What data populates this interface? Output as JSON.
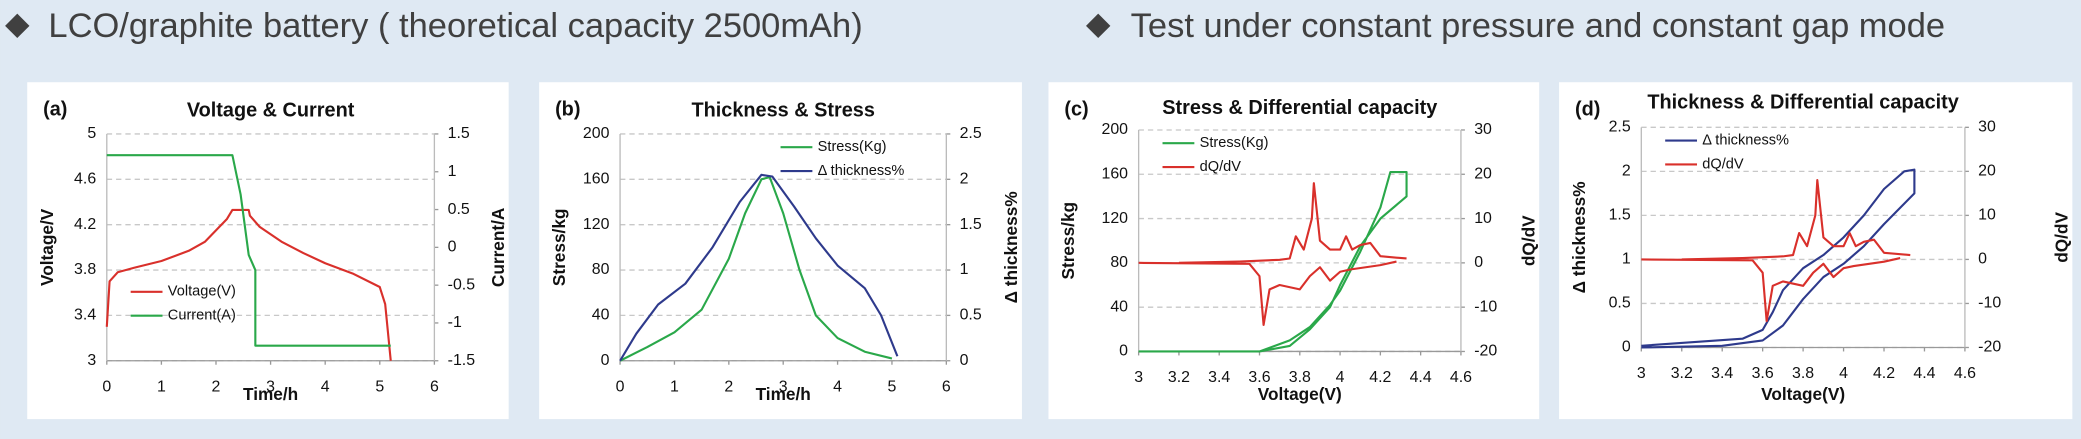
{
  "header": {
    "left": "LCO/graphite battery ( theoretical capacity 2500mAh)",
    "right": "Test under constant pressure and constant gap mode"
  },
  "chart_data": [
    {
      "type": "line",
      "label": "(a)",
      "title": "Voltage & Current",
      "xlabel": "Time/h",
      "ylabel": "Voltage/V",
      "y2label": "Current/A",
      "xlim": [
        0,
        6
      ],
      "xticks": [
        0,
        1,
        2,
        3,
        4,
        5,
        6
      ],
      "ylim": [
        3,
        5
      ],
      "yticks": [
        3,
        3.4,
        3.8,
        4.2,
        4.6,
        5
      ],
      "y2lim": [
        -1.5,
        1.5
      ],
      "y2ticks": [
        -1.5,
        -1,
        -0.5,
        0,
        0.5,
        1,
        1.5
      ],
      "grid": true,
      "legend": "lower left",
      "series": [
        {
          "name": "Voltage(V)",
          "color": "#d9302b",
          "x": [
            0,
            0.05,
            0.2,
            0.5,
            1,
            1.5,
            1.8,
            2.0,
            2.2,
            2.3,
            2.6,
            2.62,
            2.8,
            3.2,
            3.6,
            4,
            4.5,
            5.0,
            5.1,
            5.2
          ],
          "values": [
            3.3,
            3.7,
            3.78,
            3.82,
            3.88,
            3.97,
            4.05,
            4.15,
            4.25,
            4.33,
            4.33,
            4.28,
            4.18,
            4.05,
            3.95,
            3.86,
            3.77,
            3.65,
            3.5,
            3.0
          ]
        },
        {
          "name": "Current(A)",
          "color": "#2aa84a",
          "axis": "y2",
          "x": [
            0,
            2.3,
            2.45,
            2.6,
            2.72,
            2.72,
            5.2
          ],
          "values": [
            1.22,
            1.22,
            0.7,
            -0.1,
            -0.3,
            -1.3,
            -1.3
          ]
        }
      ]
    },
    {
      "type": "line",
      "label": "(b)",
      "title": "Thickness & Stress",
      "xlabel": "Time/h",
      "ylabel": "Stress/kg",
      "y2label": "Δ thickness%",
      "xlim": [
        0,
        6
      ],
      "xticks": [
        0,
        1,
        2,
        3,
        4,
        5,
        6
      ],
      "ylim": [
        0,
        200
      ],
      "yticks": [
        0,
        40,
        80,
        120,
        160,
        200
      ],
      "y2lim": [
        0,
        2.5
      ],
      "y2ticks": [
        0,
        0.5,
        1,
        1.5,
        2,
        2.5
      ],
      "grid": true,
      "legend": "upper right",
      "series": [
        {
          "name": "Stress(Kg)",
          "color": "#2aa84a",
          "x": [
            0,
            0.5,
            1,
            1.5,
            2,
            2.3,
            2.6,
            2.75,
            3,
            3.3,
            3.6,
            4,
            4.5,
            5
          ],
          "values": [
            0,
            12,
            25,
            45,
            90,
            130,
            160,
            162,
            130,
            80,
            40,
            20,
            8,
            2
          ]
        },
        {
          "name": "Δ thickness%",
          "color": "#2e3a8c",
          "axis": "y2",
          "x": [
            0,
            0.3,
            0.7,
            1.2,
            1.7,
            2.2,
            2.6,
            2.8,
            3.2,
            3.6,
            4,
            4.5,
            4.8,
            5.1
          ],
          "values": [
            0,
            0.3,
            0.62,
            0.85,
            1.25,
            1.75,
            2.05,
            2.03,
            1.7,
            1.35,
            1.05,
            0.8,
            0.5,
            0.05
          ]
        }
      ]
    },
    {
      "type": "line",
      "label": "(c)",
      "title": "Stress & Differential capacity",
      "xlabel": "Voltage(V)",
      "ylabel": "Stress/kg",
      "y2label": "dQ/dV",
      "xlim": [
        3,
        4.6
      ],
      "xticks": [
        3,
        3.2,
        3.4,
        3.6,
        3.8,
        4,
        4.2,
        4.4,
        4.6
      ],
      "ylim": [
        0,
        200
      ],
      "yticks": [
        0,
        40,
        80,
        120,
        160,
        200
      ],
      "y2lim": [
        -20,
        30
      ],
      "y2ticks": [
        -20,
        -10,
        0,
        10,
        20,
        30
      ],
      "grid": true,
      "legend": "upper left",
      "series": [
        {
          "name": "Stress(Kg)",
          "color": "#2aa84a",
          "x": [
            3.0,
            3.6,
            3.75,
            3.85,
            3.95,
            4.0,
            4.1,
            4.2,
            4.25,
            4.33,
            4.33,
            4.2,
            4.1,
            4.0,
            3.95,
            3.85,
            3.75,
            3.6
          ],
          "values": [
            0,
            0,
            10,
            22,
            42,
            55,
            90,
            130,
            162,
            162,
            140,
            120,
            95,
            60,
            40,
            20,
            5,
            0
          ]
        },
        {
          "name": "dQ/dV",
          "color": "#d9302b",
          "axis": "y2",
          "x": [
            3.0,
            3.55,
            3.6,
            3.62,
            3.65,
            3.7,
            3.8,
            3.85,
            3.9,
            3.95,
            4.0,
            4.05,
            4.2,
            4.28,
            null,
            3.2,
            3.5,
            3.7,
            3.75,
            3.78,
            3.82,
            3.86,
            3.87,
            3.9,
            3.95,
            4.0,
            4.03,
            4.06,
            4.1,
            4.15,
            4.2,
            4.33
          ],
          "values": [
            0,
            -0.2,
            -3,
            -14,
            -6,
            -5,
            -6,
            -3,
            -1,
            -4,
            -2,
            -1.5,
            -0.5,
            0.3,
            null,
            0,
            0.3,
            0.7,
            1,
            6,
            3,
            10,
            18,
            5,
            3,
            3,
            6,
            3,
            4,
            4.5,
            1.5,
            1
          ]
        }
      ]
    },
    {
      "type": "line",
      "label": "(d)",
      "title": "Thickness & Differential capacity",
      "xlabel": "Voltage(V)",
      "ylabel": "Δ thickness%",
      "y2label": "dQ/dV",
      "xlim": [
        3,
        4.6
      ],
      "xticks": [
        3,
        3.2,
        3.4,
        3.6,
        3.8,
        4,
        4.2,
        4.4,
        4.6
      ],
      "ylim": [
        0,
        2.5
      ],
      "yticks": [
        0,
        0.5,
        1,
        1.5,
        2,
        2.5
      ],
      "y2lim": [
        -20,
        30
      ],
      "y2ticks": [
        -20,
        -10,
        0,
        10,
        20,
        30
      ],
      "grid": true,
      "legend": "upper left",
      "series": [
        {
          "name": "Δ thickness%",
          "color": "#2e3a8c",
          "x": [
            3.0,
            3.5,
            3.6,
            3.65,
            3.7,
            3.8,
            3.9,
            4.0,
            4.1,
            4.2,
            4.3,
            4.35,
            4.35,
            4.2,
            4.1,
            4.0,
            3.9,
            3.8,
            3.7,
            3.6,
            3.4,
            3.0
          ],
          "values": [
            0.02,
            0.1,
            0.2,
            0.4,
            0.65,
            0.9,
            1.05,
            1.25,
            1.5,
            1.8,
            2.0,
            2.02,
            1.75,
            1.4,
            1.15,
            0.95,
            0.8,
            0.55,
            0.25,
            0.08,
            0.02,
            0
          ]
        },
        {
          "name": "dQ/dV",
          "color": "#d9302b",
          "axis": "y2",
          "x": [
            3.0,
            3.55,
            3.6,
            3.62,
            3.65,
            3.7,
            3.8,
            3.85,
            3.9,
            3.95,
            4.0,
            4.05,
            4.2,
            4.28,
            null,
            3.2,
            3.5,
            3.7,
            3.75,
            3.78,
            3.82,
            3.86,
            3.87,
            3.9,
            3.95,
            4.0,
            4.03,
            4.06,
            4.1,
            4.15,
            4.2,
            4.33
          ],
          "values": [
            0,
            -0.2,
            -3,
            -14,
            -6,
            -5,
            -6,
            -3,
            -1,
            -4,
            -2,
            -1.5,
            -0.5,
            0.3,
            null,
            0,
            0.3,
            0.7,
            1,
            6,
            3,
            10,
            18,
            5,
            3,
            3,
            6,
            3,
            4,
            4.5,
            1.5,
            1
          ]
        }
      ]
    }
  ]
}
